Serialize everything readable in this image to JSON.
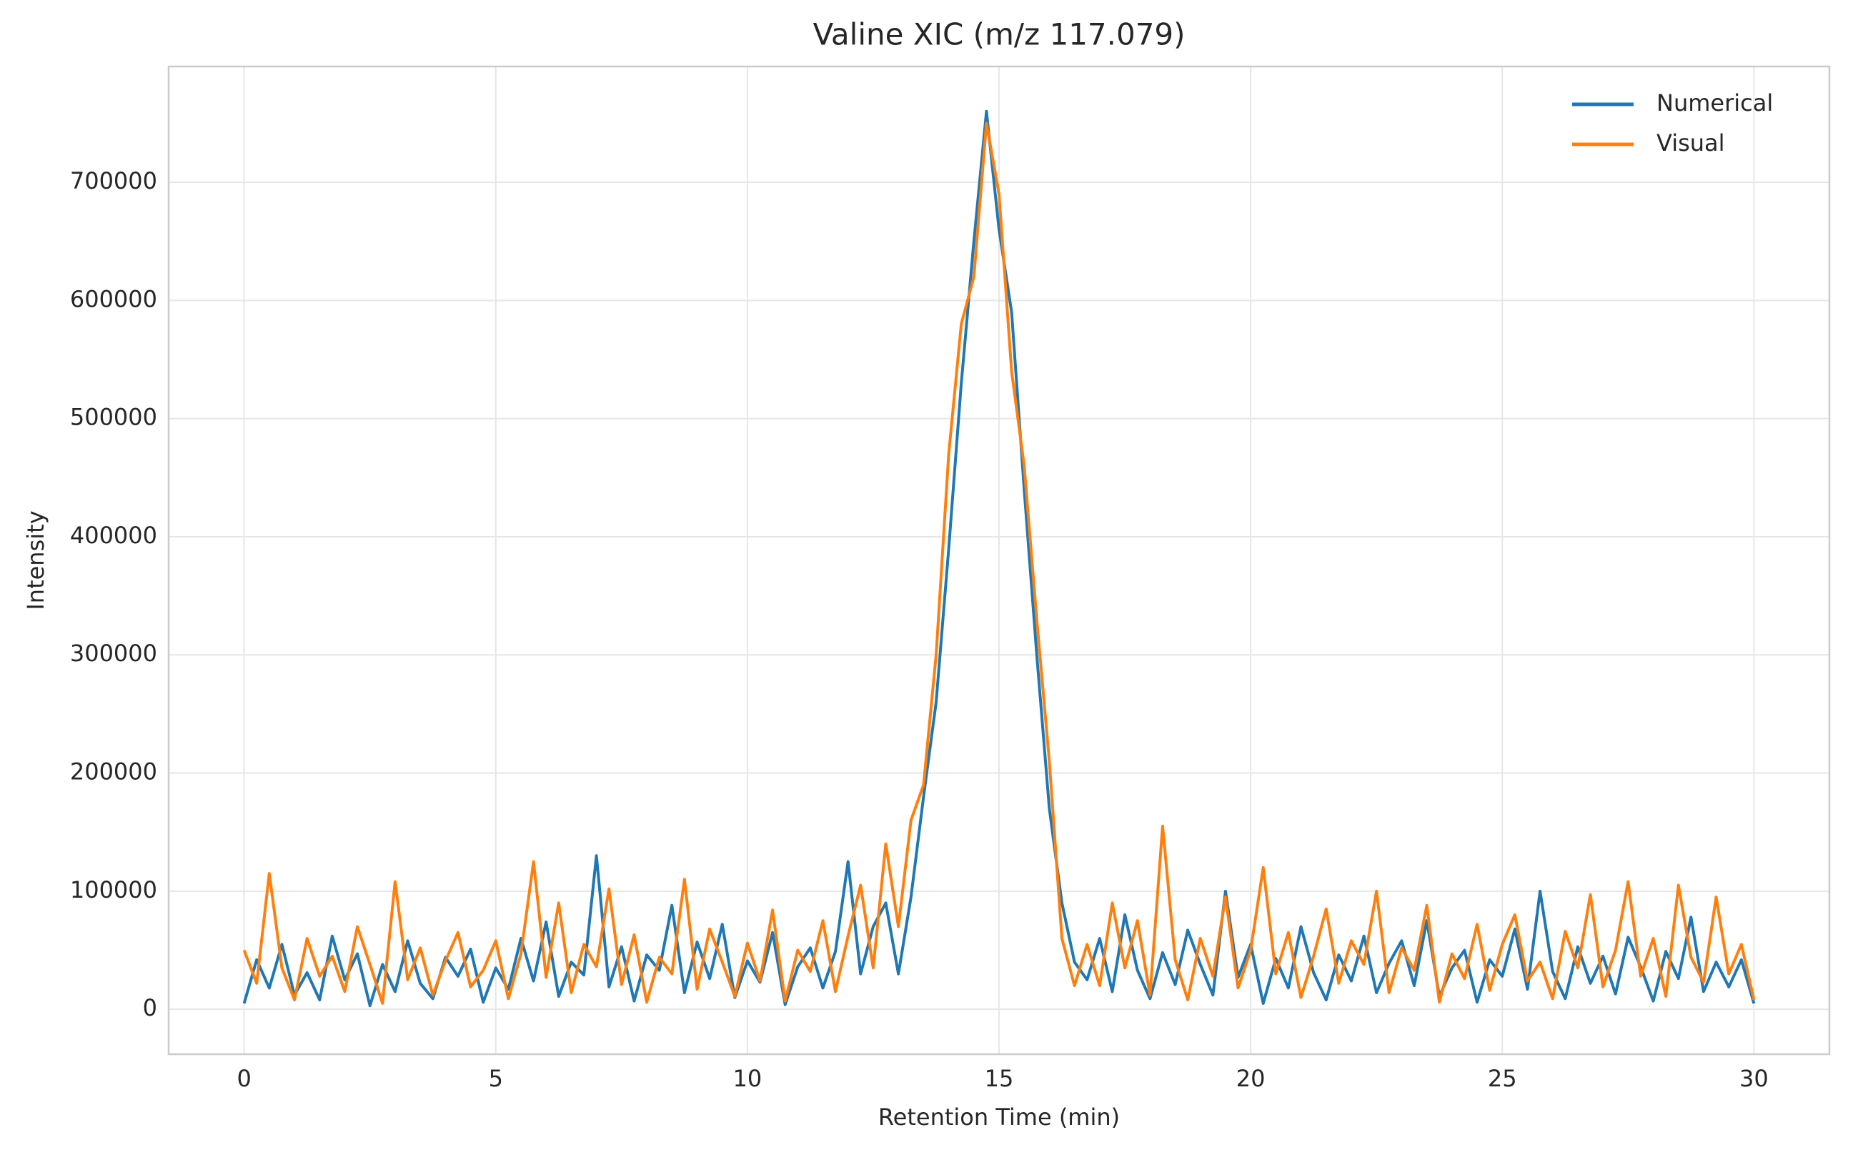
{
  "chart_data": {
    "type": "line",
    "title": "Valine XIC (m/z 117.079)",
    "x_label": "Retention Time (min)",
    "y_label": "Intensity",
    "x": [
      0,
      0.25,
      0.5,
      0.75,
      1,
      1.25,
      1.5,
      1.75,
      2,
      2.25,
      2.5,
      2.75,
      3,
      3.25,
      3.5,
      3.75,
      4,
      4.25,
      4.5,
      4.75,
      5,
      5.25,
      5.5,
      5.75,
      6,
      6.25,
      6.5,
      6.75,
      7,
      7.25,
      7.5,
      7.75,
      8,
      8.25,
      8.5,
      8.75,
      9,
      9.25,
      9.5,
      9.75,
      10,
      10.25,
      10.5,
      10.75,
      11,
      11.25,
      11.5,
      11.75,
      12,
      12.25,
      12.5,
      12.75,
      13,
      13.25,
      13.5,
      13.75,
      14,
      14.25,
      14.5,
      14.75,
      15,
      15.25,
      15.5,
      15.75,
      16,
      16.25,
      16.5,
      16.75,
      17,
      17.25,
      17.5,
      17.75,
      18,
      18.25,
      18.5,
      18.75,
      19,
      19.25,
      19.5,
      19.75,
      20,
      20.25,
      20.5,
      20.75,
      21,
      21.25,
      21.5,
      21.75,
      22,
      22.25,
      22.5,
      22.75,
      23,
      23.25,
      23.5,
      23.75,
      24,
      24.25,
      24.5,
      24.75,
      25,
      25.25,
      25.5,
      25.75,
      26,
      26.25,
      26.5,
      26.75,
      27,
      27.25,
      27.5,
      27.75,
      28,
      28.25,
      28.5,
      28.75,
      29,
      29.25,
      29.5,
      29.75,
      30
    ],
    "series": [
      {
        "name": "Numerical",
        "color": "#1f77b4",
        "values": [
          5000,
          42000,
          18000,
          55000,
          12000,
          31000,
          8000,
          62000,
          25000,
          47000,
          3000,
          38000,
          15000,
          58000,
          22000,
          9000,
          44000,
          28000,
          51000,
          6000,
          35000,
          17000,
          60000,
          24000,
          74000,
          11000,
          40000,
          29000,
          130000,
          19000,
          53000,
          7000,
          46000,
          33000,
          88000,
          14000,
          57000,
          26000,
          72000,
          10000,
          41000,
          23000,
          65000,
          4000,
          36000,
          52000,
          18000,
          49000,
          125000,
          30000,
          70000,
          90000,
          30000,
          95000,
          180000,
          260000,
          390000,
          530000,
          650000,
          760000,
          660000,
          590000,
          440000,
          300000,
          170000,
          90000,
          40000,
          25000,
          60000,
          15000,
          80000,
          33000,
          9000,
          48000,
          21000,
          67000,
          38000,
          12000,
          100000,
          27000,
          55000,
          5000,
          43000,
          18000,
          70000,
          31000,
          8000,
          46000,
          24000,
          62000,
          14000,
          39000,
          58000,
          20000,
          75000,
          11000,
          35000,
          50000,
          6000,
          42000,
          28000,
          68000,
          17000,
          100000,
          32000,
          9000,
          53000,
          22000,
          45000,
          13000,
          61000,
          36000,
          7000,
          49000,
          26000,
          78000,
          15000,
          40000,
          19000,
          42000,
          5000
        ]
      },
      {
        "name": "Visual",
        "color": "#ff7f0e",
        "values": [
          50000,
          22000,
          115000,
          35000,
          8000,
          60000,
          28000,
          45000,
          15000,
          70000,
          38000,
          5000,
          108000,
          25000,
          52000,
          12000,
          41000,
          65000,
          19000,
          33000,
          58000,
          9000,
          47000,
          125000,
          27000,
          90000,
          14000,
          55000,
          36000,
          102000,
          21000,
          63000,
          6000,
          44000,
          30000,
          110000,
          17000,
          68000,
          40000,
          11000,
          56000,
          24000,
          84000,
          7000,
          50000,
          32000,
          75000,
          15000,
          62000,
          105000,
          35000,
          140000,
          70000,
          160000,
          190000,
          300000,
          470000,
          580000,
          620000,
          750000,
          690000,
          540000,
          460000,
          330000,
          210000,
          60000,
          20000,
          55000,
          20000,
          90000,
          35000,
          75000,
          12000,
          155000,
          42000,
          8000,
          60000,
          28000,
          95000,
          18000,
          50000,
          120000,
          30000,
          65000,
          10000,
          45000,
          85000,
          22000,
          58000,
          38000,
          100000,
          14000,
          52000,
          33000,
          88000,
          6000,
          47000,
          26000,
          72000,
          16000,
          55000,
          80000,
          24000,
          40000,
          9000,
          66000,
          35000,
          97000,
          19000,
          50000,
          108000,
          28000,
          60000,
          11000,
          105000,
          44000,
          23000,
          95000,
          30000,
          55000,
          8000
        ]
      }
    ],
    "xlim": [
      -1.5,
      31.5
    ],
    "xticks": [
      0,
      5,
      10,
      15,
      20,
      25,
      30
    ],
    "ylim": [
      -38000,
      798000
    ],
    "yticks": [
      0,
      100000,
      200000,
      300000,
      400000,
      500000,
      600000,
      700000
    ],
    "grid": true,
    "legend": "upper right"
  }
}
